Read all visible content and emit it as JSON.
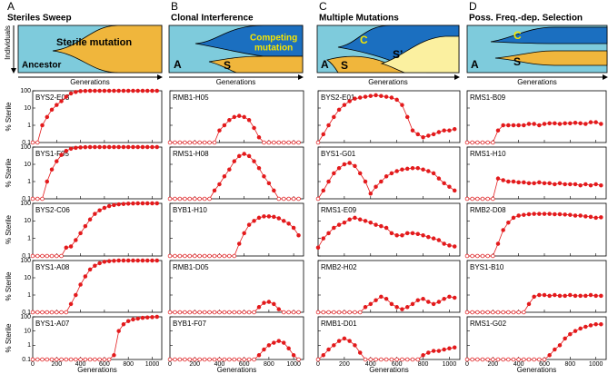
{
  "panels": [
    {
      "letter": "A",
      "title": "Steriles Sweep",
      "diagram_labels": [
        "Sterile mutation",
        "Ancestor"
      ]
    },
    {
      "letter": "B",
      "title": "Clonal Interference",
      "diagram_labels": [
        "A",
        "S",
        "Competing",
        "mutation"
      ]
    },
    {
      "letter": "C",
      "title": "Multiple Mutations",
      "diagram_labels": [
        "A",
        "S",
        "C",
        "S’"
      ]
    },
    {
      "letter": "D",
      "title": "Poss. Freq.-dep. Selection",
      "diagram_labels": [
        "A",
        "C",
        "S"
      ]
    }
  ],
  "diagram_axes": {
    "ylabel": "Individuals",
    "xlabel": "Generations"
  },
  "shared_axes": {
    "ylabel": "% Sterile",
    "xlabel": "Generations",
    "log_y": true,
    "color": "#e31a1c",
    "x": [
      0,
      40,
      80,
      120,
      160,
      200,
      240,
      280,
      320,
      360,
      400,
      440,
      480,
      520,
      560,
      600,
      640,
      680,
      720,
      760,
      800,
      840,
      880,
      920,
      960,
      1000,
      1040
    ],
    "xlim": [
      0,
      1080
    ],
    "xticks": [
      0,
      200,
      400,
      600,
      800,
      1000
    ],
    "ylim": [
      0.1,
      100
    ],
    "yticks": [
      0.1,
      1,
      10,
      100
    ]
  },
  "chart_data": [
    {
      "type": "line",
      "title": "BYS2-E03",
      "values": [
        0.1,
        0.1,
        1,
        3,
        8,
        15,
        25,
        45,
        70,
        85,
        95,
        98,
        100,
        100,
        100,
        100,
        100,
        100,
        100,
        100,
        100,
        100,
        100,
        100,
        100,
        100,
        100
      ]
    },
    {
      "type": "line",
      "title": "BYS1-F05",
      "values": [
        0.1,
        0.1,
        0.1,
        1,
        5,
        15,
        35,
        60,
        80,
        90,
        95,
        98,
        100,
        100,
        100,
        100,
        100,
        100,
        100,
        100,
        100,
        100,
        100,
        100,
        100,
        100,
        100
      ]
    },
    {
      "type": "line",
      "title": "BYS2-C06",
      "values": [
        0.1,
        0.1,
        0.1,
        0.1,
        0.1,
        0.1,
        0.1,
        0.3,
        0.35,
        0.8,
        2,
        5,
        12,
        25,
        40,
        55,
        70,
        80,
        88,
        92,
        96,
        98,
        100,
        100,
        100,
        100,
        100
      ]
    },
    {
      "type": "line",
      "title": "BYS1-A08",
      "values": [
        0.1,
        0.1,
        0.1,
        0.1,
        0.1,
        0.1,
        0.1,
        0.1,
        0.3,
        1,
        4,
        12,
        30,
        50,
        70,
        85,
        92,
        96,
        100,
        100,
        100,
        100,
        100,
        100,
        100,
        100,
        100
      ]
    },
    {
      "type": "line",
      "title": "BYS1-A07",
      "values": [
        0.1,
        0.1,
        0.1,
        0.1,
        0.1,
        0.1,
        0.1,
        0.1,
        0.1,
        0.1,
        0.1,
        0.1,
        0.1,
        0.1,
        0.1,
        0.1,
        0.1,
        0.2,
        10,
        30,
        50,
        65,
        75,
        85,
        90,
        95,
        100
      ]
    },
    {
      "type": "line",
      "title": "RMB1-H05",
      "values": [
        0.1,
        0.1,
        0.1,
        0.1,
        0.1,
        0.1,
        0.1,
        0.1,
        0.1,
        0.1,
        0.5,
        1,
        2,
        3,
        3.5,
        3,
        2,
        0.7,
        0.2,
        0.1,
        0.1,
        0.1,
        0.1,
        0.1,
        0.1,
        0.1,
        0.1
      ]
    },
    {
      "type": "line",
      "title": "RMS1-H08",
      "values": [
        0.1,
        0.1,
        0.1,
        0.1,
        0.1,
        0.1,
        0.1,
        0.1,
        0.1,
        0.3,
        0.7,
        2,
        5,
        15,
        30,
        40,
        30,
        15,
        6,
        2,
        0.8,
        0.3,
        0.1,
        0.1,
        0.1,
        0.1,
        0.1
      ]
    },
    {
      "type": "line",
      "title": "BYB1-H10",
      "values": [
        0.1,
        0.1,
        0.1,
        0.1,
        0.1,
        0.1,
        0.1,
        0.1,
        0.1,
        0.1,
        0.1,
        0.1,
        0.1,
        0.1,
        0.5,
        2,
        6,
        10,
        15,
        18,
        18,
        17,
        14,
        10,
        7,
        4,
        1.5
      ]
    },
    {
      "type": "line",
      "title": "RMB1-D05",
      "values": [
        0.1,
        0.1,
        0.1,
        0.1,
        0.1,
        0.1,
        0.1,
        0.1,
        0.1,
        0.1,
        0.1,
        0.1,
        0.1,
        0.1,
        0.1,
        0.1,
        0.1,
        0.1,
        0.2,
        0.35,
        0.4,
        0.3,
        0.15,
        0.1,
        0.1,
        0.1,
        0.1
      ]
    },
    {
      "type": "line",
      "title": "BYB1-F07",
      "values": [
        0.1,
        0.1,
        0.1,
        0.1,
        0.1,
        0.1,
        0.1,
        0.1,
        0.1,
        0.1,
        0.1,
        0.1,
        0.1,
        0.1,
        0.1,
        0.1,
        0.1,
        0.1,
        0.2,
        0.5,
        1,
        1.5,
        2,
        1.5,
        0.6,
        0.2,
        0.1
      ]
    },
    {
      "type": "line",
      "title": "BYS2-E01",
      "values": [
        0.1,
        0.3,
        1,
        3,
        8,
        15,
        25,
        35,
        40,
        45,
        50,
        55,
        50,
        45,
        40,
        30,
        15,
        3,
        0.5,
        0.3,
        0.2,
        0.25,
        0.3,
        0.4,
        0.5,
        0.5,
        0.6
      ]
    },
    {
      "type": "line",
      "title": "BYS1-G01",
      "values": [
        0.1,
        0.3,
        1,
        3,
        6,
        10,
        12,
        8,
        3,
        1,
        0.2,
        0.5,
        1,
        2,
        3,
        4,
        5,
        5.5,
        6,
        6,
        5,
        4,
        3,
        1.5,
        0.8,
        0.5,
        0.3
      ]
    },
    {
      "type": "line",
      "title": "RMS1-E09",
      "values": [
        0.3,
        1,
        2,
        4,
        6,
        8,
        12,
        15,
        12,
        10,
        8,
        6,
        5,
        4,
        2,
        1.5,
        1.5,
        2,
        2,
        1.8,
        1.5,
        1.2,
        1,
        0.8,
        0.5,
        0.4,
        0.35
      ]
    },
    {
      "type": "line",
      "title": "RMB2-H02",
      "values": [
        0.1,
        0.1,
        0.1,
        0.1,
        0.1,
        0.1,
        0.1,
        0.1,
        0.1,
        0.2,
        0.3,
        0.5,
        0.8,
        0.6,
        0.3,
        0.2,
        0.15,
        0.2,
        0.3,
        0.5,
        0.6,
        0.4,
        0.3,
        0.4,
        0.6,
        0.8,
        0.7
      ]
    },
    {
      "type": "line",
      "title": "RMB1-D01",
      "values": [
        0.1,
        0.2,
        0.5,
        1,
        2,
        3,
        2,
        1,
        0.3,
        0.1,
        0.1,
        0.1,
        0.1,
        0.1,
        0.1,
        0.1,
        0.1,
        0.1,
        0.1,
        0.1,
        0.2,
        0.3,
        0.4,
        0.4,
        0.5,
        0.6,
        0.7
      ]
    },
    {
      "type": "line",
      "title": "RMS1-B09",
      "values": [
        0.1,
        0.1,
        0.1,
        0.1,
        0.1,
        0.1,
        0.5,
        1,
        1,
        1,
        1,
        1,
        1.2,
        1.2,
        1,
        1.2,
        1.3,
        1.3,
        1.2,
        1.3,
        1.3,
        1.4,
        1.3,
        1.2,
        1.5,
        1.5,
        1.2
      ]
    },
    {
      "type": "line",
      "title": "RMS1-H10",
      "values": [
        0.1,
        0.1,
        0.1,
        0.1,
        0.1,
        0.1,
        1.5,
        1.2,
        1,
        1,
        0.9,
        0.9,
        0.8,
        0.8,
        0.9,
        0.8,
        0.8,
        0.7,
        0.8,
        0.7,
        0.7,
        0.7,
        0.6,
        0.7,
        0.6,
        0.7,
        0.6
      ]
    },
    {
      "type": "line",
      "title": "RMB2-D08",
      "values": [
        0.1,
        0.1,
        0.1,
        0.1,
        0.1,
        0.1,
        0.5,
        3,
        8,
        15,
        20,
        22,
        24,
        25,
        25,
        25,
        25,
        24,
        24,
        23,
        22,
        20,
        20,
        18,
        17,
        15,
        16
      ]
    },
    {
      "type": "line",
      "title": "BYS1-B10",
      "values": [
        0.1,
        0.1,
        0.1,
        0.1,
        0.1,
        0.1,
        0.1,
        0.1,
        0.1,
        0.1,
        0.1,
        0.1,
        0.3,
        0.8,
        1,
        1,
        0.9,
        1,
        0.9,
        0.9,
        1,
        0.9,
        0.9,
        0.9,
        1,
        0.9,
        0.9
      ]
    },
    {
      "type": "line",
      "title": "RMS1-G02",
      "values": [
        0.1,
        0.1,
        0.1,
        0.1,
        0.1,
        0.1,
        0.1,
        0.1,
        0.1,
        0.1,
        0.1,
        0.1,
        0.1,
        0.1,
        0.1,
        0.1,
        0.2,
        0.5,
        1,
        3,
        6,
        10,
        15,
        20,
        25,
        30,
        30
      ]
    }
  ]
}
